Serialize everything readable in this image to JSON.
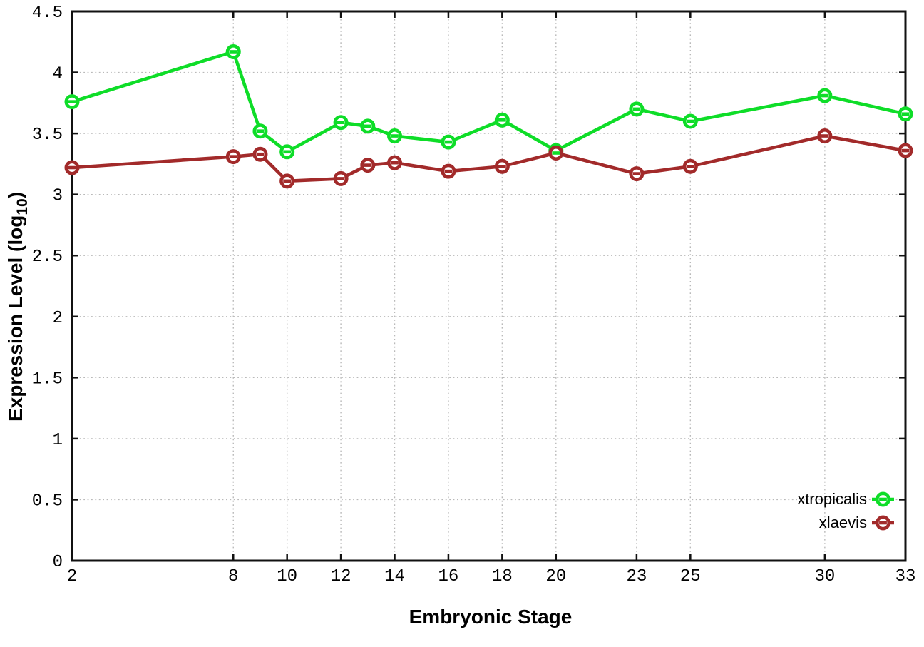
{
  "chart_data": {
    "type": "line",
    "title": "",
    "xlabel": "Embryonic Stage",
    "ylabel": {
      "prefix": "Expression Level (log",
      "sub": "10",
      "suffix": ")"
    },
    "x": [
      2,
      8,
      9,
      10,
      12,
      13,
      14,
      16,
      18,
      20,
      23,
      25,
      30,
      33
    ],
    "series": [
      {
        "name": "xtropicalis",
        "color": "#0edd28",
        "values": [
          3.76,
          4.17,
          3.52,
          3.35,
          3.59,
          3.56,
          3.48,
          3.43,
          3.61,
          3.36,
          3.7,
          3.6,
          3.81,
          3.66
        ]
      },
      {
        "name": "xlaevis",
        "color": "#a22a2a",
        "values": [
          3.22,
          3.31,
          3.33,
          3.11,
          3.13,
          3.24,
          3.26,
          3.19,
          3.23,
          3.34,
          3.17,
          3.23,
          3.48,
          3.36
        ]
      }
    ],
    "xlim": [
      2,
      33
    ],
    "ylim": [
      0,
      4.5
    ],
    "x_ticks": {
      "values": [
        2,
        8,
        10,
        12,
        14,
        16,
        18,
        20,
        23,
        25,
        30,
        33
      ],
      "labels": [
        "2",
        "8",
        "10",
        "12",
        "14",
        "16",
        "18",
        "20",
        "23",
        "25",
        "30",
        "33"
      ]
    },
    "y_ticks": {
      "values": [
        0,
        0.5,
        1,
        1.5,
        2,
        2.5,
        3,
        3.5,
        4,
        4.5
      ],
      "labels": [
        "0",
        "0.5",
        "1",
        "1.5",
        "2",
        "2.5",
        "3",
        "3.5",
        "4",
        "4.5"
      ]
    },
    "grid": true,
    "legend_position": "bottom-right",
    "marker": "open-circle-dash"
  },
  "colors": {
    "background": "#ffffff",
    "axis": "#111111",
    "grid": "#b9b9b9",
    "text": "#000000"
  }
}
